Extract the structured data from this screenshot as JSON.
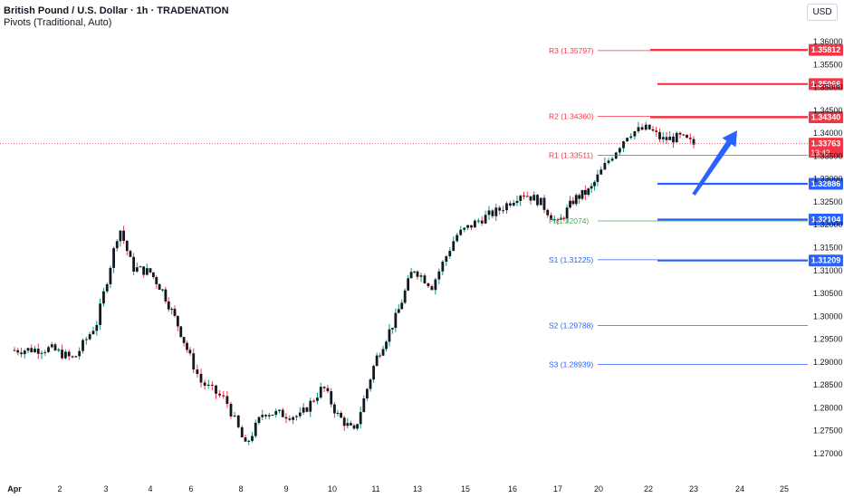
{
  "legend": {
    "title": "British Pound / U.S. Dollar · 1h · TRADENATION",
    "subtitle": "Pivots (Traditional, Auto)"
  },
  "currency_button": "USD",
  "colors": {
    "up": "#089981",
    "down": "#f23645",
    "candle_body": "#131722",
    "resistance": "#f23645",
    "support": "#2962ff",
    "pivot": "#4caf50",
    "arrow": "#2962ff"
  },
  "chart_data": {
    "type": "candlestick",
    "title": "British Pound / U.S. Dollar · 1h · TRADENATION",
    "y_axis": {
      "ylim": [
        1.2675,
        1.3625
      ],
      "ticks": [
        "1.36000",
        "1.35500",
        "1.35000",
        "1.34500",
        "1.34000",
        "1.33500",
        "1.33000",
        "1.32500",
        "1.32000",
        "1.31500",
        "1.31000",
        "1.30500",
        "1.30000",
        "1.29500",
        "1.29000",
        "1.28500",
        "1.28000",
        "1.27500",
        "1.27000"
      ]
    },
    "x_axis": {
      "ticks": [
        {
          "label": "Apr",
          "day": 1
        },
        {
          "label": "2",
          "day": 2
        },
        {
          "label": "3",
          "day": 3
        },
        {
          "label": "4",
          "day": 4
        },
        {
          "label": "6",
          "day": 6
        },
        {
          "label": "8",
          "day": 8
        },
        {
          "label": "9",
          "day": 9
        },
        {
          "label": "10",
          "day": 10
        },
        {
          "label": "11",
          "day": 11
        },
        {
          "label": "13",
          "day": 13
        },
        {
          "label": "15",
          "day": 15
        },
        {
          "label": "16",
          "day": 16
        },
        {
          "label": "17",
          "day": 17
        },
        {
          "label": "20",
          "day": 20
        },
        {
          "label": "22",
          "day": 22
        },
        {
          "label": "23",
          "day": 23
        },
        {
          "label": "24",
          "day": 24
        },
        {
          "label": "25",
          "day": 25
        }
      ]
    },
    "price_path": [
      [
        1.0,
        1.2925
      ],
      [
        1.8,
        1.2928
      ],
      [
        2.3,
        1.2905
      ],
      [
        2.8,
        1.2985
      ],
      [
        3.3,
        1.3195
      ],
      [
        3.6,
        1.3105
      ],
      [
        4.0,
        1.3095
      ],
      [
        4.3,
        1.3055
      ],
      [
        4.7,
        1.2975
      ],
      [
        5.2,
        1.2855
      ],
      [
        5.7,
        1.2815
      ],
      [
        6.1,
        1.2715
      ],
      [
        6.5,
        1.279
      ],
      [
        7.3,
        1.278
      ],
      [
        7.8,
        1.2845
      ],
      [
        8.1,
        1.2785
      ],
      [
        8.5,
        1.2745
      ],
      [
        9.0,
        1.2905
      ],
      [
        9.5,
        1.3
      ],
      [
        9.9,
        1.3105
      ],
      [
        10.3,
        1.3065
      ],
      [
        10.8,
        1.3175
      ],
      [
        11.3,
        1.321
      ],
      [
        11.7,
        1.323
      ],
      [
        12.2,
        1.327
      ],
      [
        12.6,
        1.325
      ],
      [
        13.0,
        1.32
      ],
      [
        13.4,
        1.3255
      ],
      [
        13.8,
        1.3275
      ],
      [
        14.2,
        1.334
      ],
      [
        14.6,
        1.34
      ],
      [
        15.0,
        1.341
      ],
      [
        15.3,
        1.3385
      ],
      [
        15.7,
        1.339
      ],
      [
        16.0,
        1.3375
      ]
    ],
    "current_price": {
      "value": "1.33763",
      "countdown": "13:42"
    },
    "pivots": [
      {
        "label": "R3 (1.35797)",
        "value": 1.35797,
        "kind": "resistance"
      },
      {
        "label": "R2 (1.34360)",
        "value": 1.3436,
        "kind": "resistance"
      },
      {
        "label": "R1 (1.33511)",
        "value": 1.33511,
        "kind": "resistance"
      },
      {
        "label": "P (1.32074)",
        "value": 1.32074,
        "kind": "pivot"
      },
      {
        "label": "S1 (1.31225)",
        "value": 1.31225,
        "kind": "support"
      },
      {
        "label": "S2 (1.29788)",
        "value": 1.29788,
        "kind": "support"
      },
      {
        "label": "S3 (1.28939)",
        "value": 1.28939,
        "kind": "support"
      }
    ],
    "key_levels": [
      {
        "value": 1.35812,
        "label": "1.35812",
        "kind": "resistance"
      },
      {
        "value": 1.35066,
        "label": "1.35066",
        "kind": "resistance"
      },
      {
        "value": 1.3434,
        "label": "1.34340",
        "kind": "resistance"
      },
      {
        "value": 1.32886,
        "label": "1.32886",
        "kind": "support"
      },
      {
        "value": 1.32104,
        "label": "1.32104",
        "kind": "support"
      },
      {
        "value": 1.31209,
        "label": "1.31209",
        "kind": "support"
      }
    ],
    "annotation": {
      "type": "arrow",
      "direction": "up",
      "from": [
        18.3,
        1.3265
      ],
      "to": [
        19.2,
        1.3405
      ]
    }
  }
}
